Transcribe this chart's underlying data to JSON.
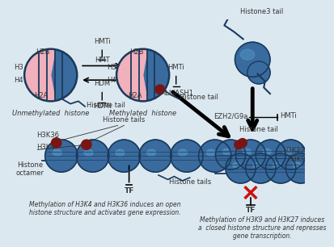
{
  "background_color": "#dce8f0",
  "text_color": "#333333",
  "dark_blue": "#1a3a5c",
  "histone_blue": "#3a6b9e",
  "histone_blue2": "#4a7db0",
  "histone_highlight": "#5a9fd0",
  "pink": "#f0b0bc",
  "dark_red": "#7a1515",
  "red_marker": "#cc1111",
  "labels": {
    "unmethylated": "Unmethylated  histone",
    "methylated": "Methylated  histone",
    "HMT": "HMT",
    "HDM": "HDM",
    "HMTi_top": "HMTi",
    "HDMi": "HDMi",
    "histone_tail_left": "Histone tail",
    "histone_tail_right": "Histone tail",
    "H2B_left": "H2B",
    "H3_left": "H3",
    "H4_left": "H4",
    "H2A_left": "H2A",
    "H2B_right": "H2B",
    "H3_right": "H3",
    "H4_right": "H4",
    "H2A_right": "H2A",
    "histone3_tail": "Histone3 tail",
    "EZH2": "EZH2/G9a",
    "HMTi_right": "HMTi",
    "HMTi_mid": "HMTi",
    "MLL_ASH1": "MLL/ASH1",
    "histone_tail_br": "Histone tail",
    "H3K36": "H3K36",
    "H3K4": "H3K4",
    "H3K27": "H3K27",
    "H3K9": "H3K9",
    "histone_tails_top": "Histone tails",
    "histone_tails_bottom": "Histone tails",
    "histone_octamer": "Histone\noctamer",
    "TF_left": "TF",
    "TF_right": "TF",
    "caption_left_1": "Methylation of H3K4 and H3K36 induces an open",
    "caption_left_2": "histone structure and activates gene expression.",
    "caption_right_1": "Methylation of H3K9 and H3K27 induces",
    "caption_right_2": "a  closed histone structure and represses",
    "caption_right_3": "gene transcription."
  }
}
